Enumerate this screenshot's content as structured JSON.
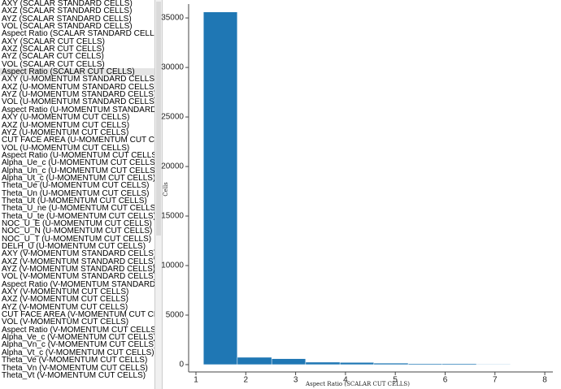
{
  "list": {
    "items": [
      "AXY (SCALAR STANDARD CELLS)",
      "AXZ (SCALAR STANDARD CELLS)",
      "AYZ (SCALAR STANDARD CELLS)",
      "VOL (SCALAR STANDARD CELLS)",
      "Aspect Ratio (SCALAR STANDARD CELLS)",
      "AXY (SCALAR CUT CELLS)",
      "AXZ (SCALAR CUT CELLS)",
      "AYZ (SCALAR CUT CELLS)",
      "VOL (SCALAR CUT CELLS)",
      "Aspect Ratio (SCALAR CUT CELLS)",
      "AXY (U-MOMENTUM STANDARD CELLS)",
      "AXZ (U-MOMENTUM STANDARD CELLS)",
      "AYZ (U-MOMENTUM STANDARD CELLS)",
      "VOL (U-MOMENTUM STANDARD CELLS)",
      "Aspect Ratio (U-MOMENTUM STANDARD CELLS)",
      "AXY (U-MOMENTUM CUT CELLS)",
      "AXZ (U-MOMENTUM CUT CELLS)",
      "AYZ (U-MOMENTUM CUT CELLS)",
      "CUT FACE AREA (U-MOMENTUM CUT CELLS)",
      "VOL (U-MOMENTUM CUT CELLS)",
      "Aspect Ratio (U-MOMENTUM CUT CELLS)",
      "Alpha_Ue_c (U-MOMENTUM CUT CELLS)",
      "Alpha_Un_c (U-MOMENTUM CUT CELLS)",
      "Alpha_Ut_c (U-MOMENTUM CUT CELLS)",
      "Theta_Ue (U-MOMENTUM CUT CELLS)",
      "Theta_Un (U-MOMENTUM CUT CELLS)",
      "Theta_Ut (U-MOMENTUM CUT CELLS)",
      "Theta_U_ne (U-MOMENTUM CUT CELLS)",
      "Theta_U_te (U-MOMENTUM CUT CELLS)",
      "NOC_U_E (U-MOMENTUM CUT CELLS)",
      "NOC_U_N (U-MOMENTUM CUT CELLS)",
      "NOC_U_T (U-MOMENTUM CUT CELLS)",
      "DELH_U (U-MOMENTUM CUT CELLS)",
      "AXY (V-MOMENTUM STANDARD CELLS)",
      "AXZ (V-MOMENTUM STANDARD CELLS)",
      "AYZ (V-MOMENTUM STANDARD CELLS)",
      "VOL (V-MOMENTUM STANDARD CELLS)",
      "Aspect Ratio (V-MOMENTUM STANDARD CELLS)",
      "AXY (V-MOMENTUM CUT CELLS)",
      "AXZ (V-MOMENTUM CUT CELLS)",
      "AYZ (V-MOMENTUM CUT CELLS)",
      "CUT FACE AREA (V-MOMENTUM CUT CELLS)",
      "VOL (V-MOMENTUM CUT CELLS)",
      "Aspect Ratio (V-MOMENTUM CUT CELLS)",
      "Alpha_Ve_c (V-MOMENTUM CUT CELLS)",
      "Alpha_Vn_c (V-MOMENTUM CUT CELLS)",
      "Alpha_Vt_c (V-MOMENTUM CUT CELLS)",
      "Theta_Ve (V-MOMENTUM CUT CELLS)",
      "Theta_Vn (V-MOMENTUM CUT CELLS)",
      "Theta_Vt (V-MOMENTUM CUT CELLS)"
    ],
    "selected": 9
  },
  "chart_data": {
    "type": "histogram",
    "x_label": "Aspect Ratio (SCALAR CUT CELLS)",
    "y_label": "Cells",
    "bins": [
      1.15,
      1.83,
      2.52,
      3.2,
      3.89,
      4.57,
      5.26,
      5.94,
      6.63,
      7.31
    ],
    "values": [
      35600,
      740,
      600,
      250,
      220,
      150,
      100,
      100,
      50
    ],
    "color": "#1f77b4",
    "xlim": [
      0.853,
      8.162
    ],
    "xticks": [
      1,
      2,
      3,
      4,
      5,
      6,
      7,
      8
    ],
    "ylim": [
      -740,
      36400
    ],
    "yticks": [
      0,
      5000,
      10000,
      15000,
      20000,
      25000,
      30000,
      35000
    ]
  }
}
